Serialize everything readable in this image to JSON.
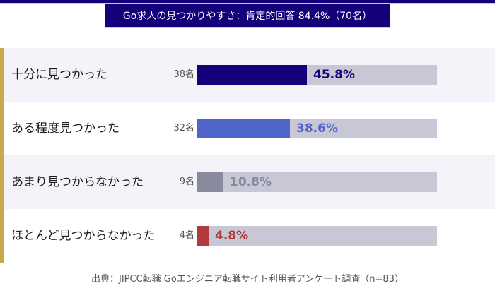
{
  "chart_data": {
    "type": "bar",
    "orientation": "horizontal",
    "title": "Go求人の見つかりやすさ：肯定的回答 84.4%（70名）",
    "source": "出典：JIPCC転職 Goエンジニア転職サイト利用者アンケート調査（n=83）",
    "xlim": [
      0,
      100
    ],
    "categories": [
      "十分に見つかった",
      "ある程度見つかった",
      "あまり見つからなかった",
      "ほとんど見つからなかった"
    ],
    "values": [
      45.8,
      38.6,
      10.8,
      4.8
    ],
    "value_labels": [
      "45.8%",
      "38.6%",
      "10.8%",
      "4.8%"
    ],
    "counts": [
      "38名",
      "32名",
      "9名",
      "4名"
    ],
    "colors": [
      "#16007a",
      "#5065c8",
      "#8a8a9e",
      "#b03a3c"
    ],
    "track_color": "#c8c7d6",
    "accent_color": "#c9a94d"
  }
}
